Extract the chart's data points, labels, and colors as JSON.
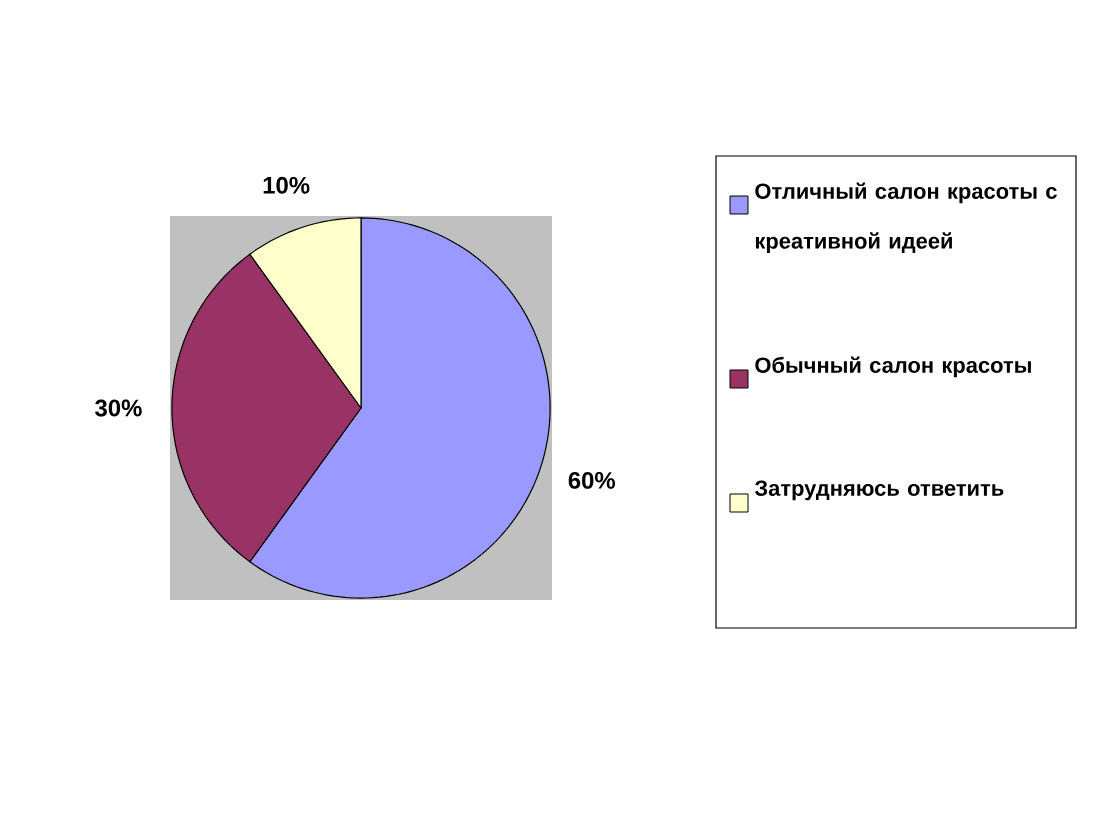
{
  "chart_data": {
    "type": "pie",
    "categories": [
      "Отличный салон красоты с креативной идеей",
      "Обычный салон красоты",
      "Затрудняюсь ответить"
    ],
    "values": [
      60,
      30,
      10
    ],
    "value_labels": [
      "60%",
      "30%",
      "10%"
    ],
    "colors": [
      "#9999ff",
      "#993366",
      "#ffffcc"
    ],
    "legend": "right"
  }
}
